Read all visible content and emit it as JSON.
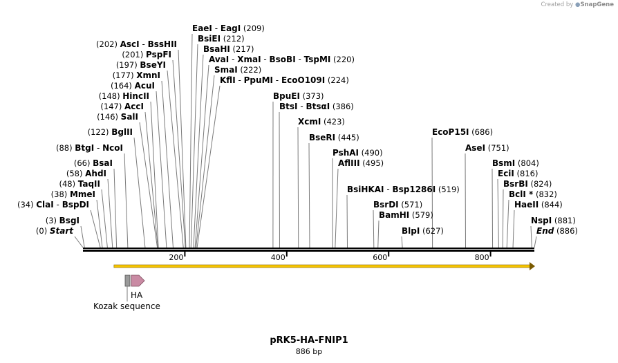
{
  "credit": {
    "prefix": "Created by",
    "brand": "SnapGene"
  },
  "map": {
    "name": "pRK5-HA-FNIP1",
    "length_label": "886 bp",
    "total_bp": 886,
    "ticks": [
      {
        "value": 200,
        "label": "200"
      },
      {
        "value": 400,
        "label": "400"
      },
      {
        "value": 600,
        "label": "600"
      },
      {
        "value": 800,
        "label": "800"
      }
    ]
  },
  "sites": [
    {
      "names": [
        "EaeI",
        "EagI"
      ],
      "pos": 209,
      "pos_label": "(209)",
      "side": "right"
    },
    {
      "names": [
        "BsiEI"
      ],
      "pos": 212,
      "pos_label": "(212)",
      "side": "right"
    },
    {
      "names": [
        "BsaHI"
      ],
      "pos": 217,
      "pos_label": "(217)",
      "side": "right"
    },
    {
      "names": [
        "AvaI",
        "XmaI",
        "BsoBI",
        "TspMI"
      ],
      "pos": 220,
      "pos_label": "(220)",
      "side": "right"
    },
    {
      "names": [
        "SmaI"
      ],
      "pos": 222,
      "pos_label": "(222)",
      "side": "right"
    },
    {
      "names": [
        "KflI",
        "PpuMI",
        "EcoO109I"
      ],
      "pos": 224,
      "pos_label": "(224)",
      "side": "right"
    },
    {
      "names": [
        "AscI",
        "BssHII"
      ],
      "pos": 202,
      "pos_label": "(202)",
      "side": "left"
    },
    {
      "names": [
        "PspFI"
      ],
      "pos": 201,
      "pos_label": "(201)",
      "side": "left"
    },
    {
      "names": [
        "BseYI"
      ],
      "pos": 197,
      "pos_label": "(197)",
      "side": "left"
    },
    {
      "names": [
        "XmnI"
      ],
      "pos": 177,
      "pos_label": "(177)",
      "side": "left"
    },
    {
      "names": [
        "AcuI"
      ],
      "pos": 164,
      "pos_label": "(164)",
      "side": "left"
    },
    {
      "names": [
        "HincII"
      ],
      "pos": 148,
      "pos_label": "(148)",
      "side": "left"
    },
    {
      "names": [
        "AccI"
      ],
      "pos": 147,
      "pos_label": "(147)",
      "side": "left"
    },
    {
      "names": [
        "SalI"
      ],
      "pos": 146,
      "pos_label": "(146)",
      "side": "left"
    },
    {
      "names": [
        "BglII"
      ],
      "pos": 122,
      "pos_label": "(122)",
      "side": "left"
    },
    {
      "names": [
        "BtgI",
        "NcoI"
      ],
      "pos": 88,
      "pos_label": "(88)",
      "side": "left"
    },
    {
      "names": [
        "BsaI"
      ],
      "pos": 66,
      "pos_label": "(66)",
      "side": "left"
    },
    {
      "names": [
        "AhdI"
      ],
      "pos": 58,
      "pos_label": "(58)",
      "side": "left"
    },
    {
      "names": [
        "TaqII"
      ],
      "pos": 48,
      "pos_label": "(48)",
      "side": "left"
    },
    {
      "names": [
        "MmeI"
      ],
      "pos": 38,
      "pos_label": "(38)",
      "side": "left"
    },
    {
      "names": [
        "ClaI",
        "BspDI"
      ],
      "pos": 34,
      "pos_label": "(34)",
      "side": "left"
    },
    {
      "names": [
        "BsgI"
      ],
      "pos": 3,
      "pos_label": "(3)",
      "side": "left"
    },
    {
      "names": [
        "Start"
      ],
      "pos": 0,
      "pos_label": "(0)",
      "side": "left",
      "italic": true
    },
    {
      "names": [
        "BpuEI"
      ],
      "pos": 373,
      "pos_label": "(373)",
      "side": "right"
    },
    {
      "names": [
        "BtsI",
        "BtsαI"
      ],
      "pos": 386,
      "pos_label": "(386)",
      "side": "right"
    },
    {
      "names": [
        "XcmI"
      ],
      "pos": 423,
      "pos_label": "(423)",
      "side": "right"
    },
    {
      "names": [
        "BseRI"
      ],
      "pos": 445,
      "pos_label": "(445)",
      "side": "right"
    },
    {
      "names": [
        "PshAI"
      ],
      "pos": 490,
      "pos_label": "(490)",
      "side": "right"
    },
    {
      "names": [
        "AflIII"
      ],
      "pos": 495,
      "pos_label": "(495)",
      "side": "right"
    },
    {
      "names": [
        "BsiHKAI",
        "Bsp1286I"
      ],
      "pos": 519,
      "pos_label": "(519)",
      "side": "right"
    },
    {
      "names": [
        "BsrDI"
      ],
      "pos": 571,
      "pos_label": "(571)",
      "side": "right"
    },
    {
      "names": [
        "BamHI"
      ],
      "pos": 579,
      "pos_label": "(579)",
      "side": "right"
    },
    {
      "names": [
        "BlpI"
      ],
      "pos": 627,
      "pos_label": "(627)",
      "side": "right"
    },
    {
      "names": [
        "EcoP15I"
      ],
      "pos": 686,
      "pos_label": "(686)",
      "side": "right"
    },
    {
      "names": [
        "AseI"
      ],
      "pos": 751,
      "pos_label": "(751)",
      "side": "right"
    },
    {
      "names": [
        "BsmI"
      ],
      "pos": 804,
      "pos_label": "(804)",
      "side": "right"
    },
    {
      "names": [
        "EciI"
      ],
      "pos": 816,
      "pos_label": "(816)",
      "side": "right"
    },
    {
      "names": [
        "BsrBI"
      ],
      "pos": 824,
      "pos_label": "(824)",
      "side": "right"
    },
    {
      "names": [
        "BclI"
      ],
      "pos": 832,
      "pos_label": "(832)",
      "side": "right",
      "star": "*"
    },
    {
      "names": [
        "HaeII"
      ],
      "pos": 844,
      "pos_label": "(844)",
      "side": "right"
    },
    {
      "names": [
        "NspI"
      ],
      "pos": 881,
      "pos_label": "(881)",
      "side": "right"
    },
    {
      "names": [
        "End"
      ],
      "pos": 886,
      "pos_label": "(886)",
      "side": "right",
      "italic": true
    }
  ],
  "features": {
    "orf": {
      "start": 88,
      "end": 886,
      "color": "#f5c400"
    },
    "ha": {
      "label": "HA",
      "color": "#c98aa3"
    },
    "kozak": {
      "label": "Kozak sequence",
      "color": "#9a9a9a"
    }
  }
}
